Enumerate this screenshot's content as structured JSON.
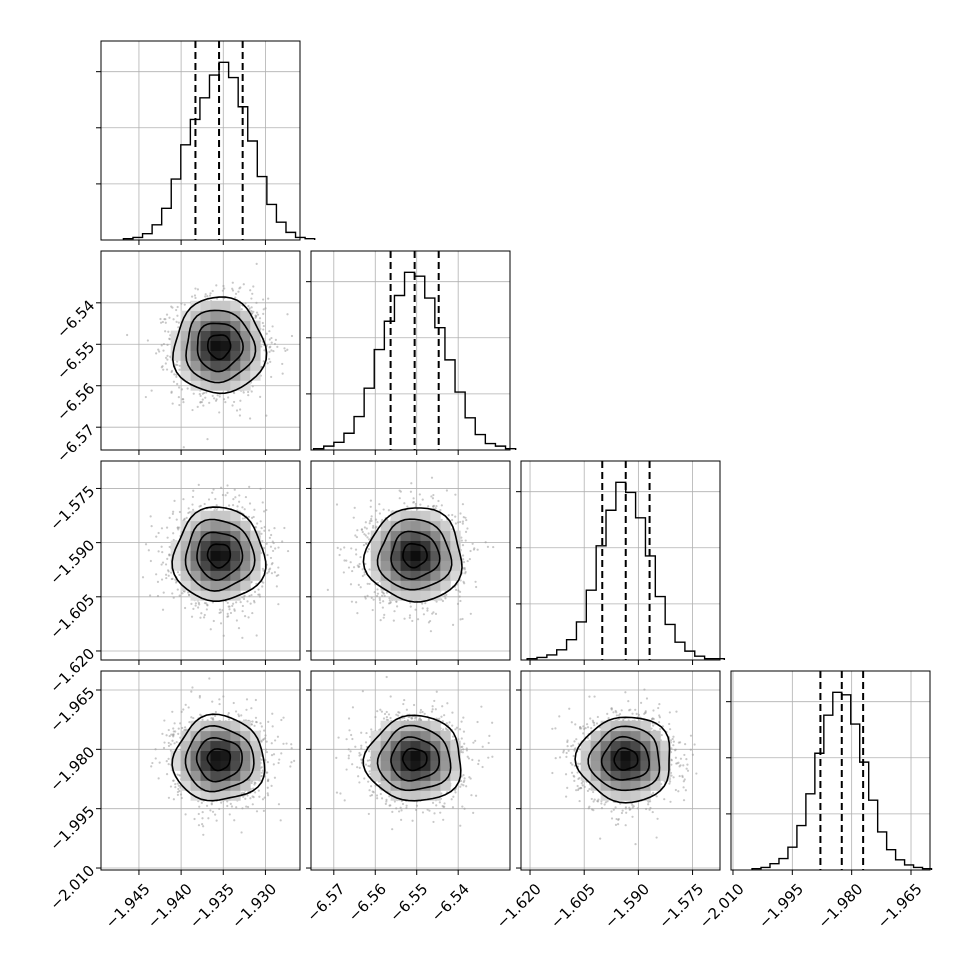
{
  "colors": {
    "axes": "#000000",
    "grid": "#b0b0b0",
    "hist_line": "#000000",
    "quantile_line": "#000000",
    "scatter": "#9a9a9a",
    "density_low": "#ffffff",
    "density_high": "#000000",
    "contour": "#000000"
  },
  "chart_data": {
    "type": "corner",
    "grid": true,
    "n_params": 4,
    "params": [
      {
        "index": 0,
        "range": [
          -1.9495,
          -1.9259
        ],
        "mean": -1.9355,
        "std": 0.0027,
        "quantiles": [
          -1.9383,
          -1.9355,
          -1.9327
        ],
        "ticks": [
          -1.945,
          -1.94,
          -1.935,
          -1.93
        ],
        "tick_labels": [
          "−1.945",
          "−1.940",
          "−1.935",
          "−1.930"
        ]
      },
      {
        "index": 1,
        "range": [
          -6.5755,
          -6.5275
        ],
        "mean": -6.5505,
        "std": 0.0058,
        "quantiles": [
          -6.5563,
          -6.5505,
          -6.5447
        ],
        "ticks": [
          -6.57,
          -6.56,
          -6.55,
          -6.54
        ],
        "tick_labels": [
          "−6.57",
          "−6.56",
          "−6.55",
          "−6.54"
        ]
      },
      {
        "index": 2,
        "range": [
          -1.6225,
          -1.5674
        ],
        "mean": -1.5935,
        "std": 0.0065,
        "quantiles": [
          -1.6,
          -1.5935,
          -1.5869
        ],
        "ticks": [
          -1.62,
          -1.605,
          -1.59,
          -1.575
        ],
        "tick_labels": [
          "−1.620",
          "−1.605",
          "−1.590",
          "−1.575"
        ]
      },
      {
        "index": 3,
        "range": [
          -2.0105,
          -1.9602
        ],
        "mean": -1.9825,
        "std": 0.0054,
        "quantiles": [
          -1.9879,
          -1.9825,
          -1.9771
        ],
        "ticks": [
          -2.01,
          -1.995,
          -1.98,
          -1.965
        ],
        "tick_labels": [
          "−2.010",
          "−1.995",
          "−1.980",
          "−1.965"
        ]
      }
    ],
    "histograms": [
      {
        "param": 0,
        "bins": 20,
        "counts": [
          1,
          2,
          5,
          12,
          25,
          48,
          75,
          95,
          112,
          130,
          140,
          128,
          105,
          78,
          50,
          28,
          14,
          6,
          2,
          1
        ]
      },
      {
        "param": 1,
        "bins": 20,
        "counts": [
          1,
          3,
          6,
          13,
          26,
          48,
          78,
          100,
          120,
          138,
          135,
          118,
          95,
          70,
          45,
          25,
          12,
          5,
          3,
          1
        ]
      },
      {
        "param": 2,
        "bins": 20,
        "counts": [
          1,
          2,
          4,
          8,
          16,
          30,
          55,
          90,
          118,
          140,
          132,
          112,
          82,
          50,
          28,
          14,
          7,
          3,
          1,
          1
        ]
      },
      {
        "param": 3,
        "bins": 20,
        "counts": [
          1,
          2,
          5,
          9,
          18,
          35,
          60,
          92,
          122,
          140,
          138,
          115,
          85,
          55,
          30,
          16,
          8,
          4,
          2,
          1
        ]
      }
    ],
    "pairs": [
      {
        "x_param": 0,
        "y_param": 1
      },
      {
        "x_param": 0,
        "y_param": 2
      },
      {
        "x_param": 1,
        "y_param": 2
      },
      {
        "x_param": 0,
        "y_param": 3
      },
      {
        "x_param": 1,
        "y_param": 3
      },
      {
        "x_param": 2,
        "y_param": 3
      }
    ],
    "contour_levels": [
      0.118,
      0.393,
      0.675,
      0.865
    ]
  }
}
